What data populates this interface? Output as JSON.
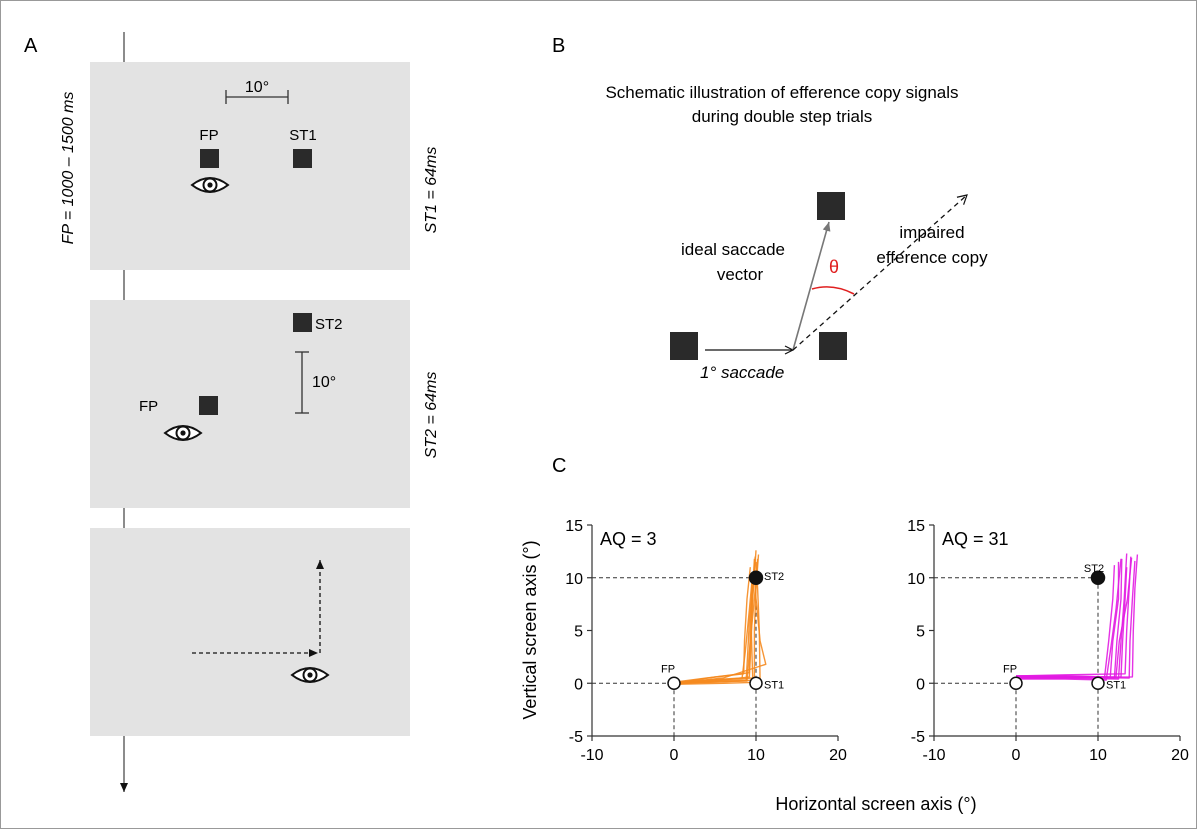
{
  "panels": {
    "a": {
      "label": "A",
      "time_labels": [
        "FP = 1000 – 1500 ms",
        "ST1 = 64ms",
        "ST2 = 64ms"
      ],
      "screen1": {
        "scale": "10°",
        "fp": "FP",
        "st1": "ST1"
      },
      "screen2": {
        "st2": "ST2",
        "fp": "FP",
        "scale": "10°"
      }
    },
    "b": {
      "label": "B",
      "title_line1": "Schematic illustration of efference copy signals",
      "title_line2": "during double step trials",
      "ideal_line1": "ideal saccade",
      "ideal_line2": "vector",
      "impaired_line1": "impaired",
      "impaired_line2": "efference copy",
      "theta": "θ",
      "saccade": "1° saccade"
    },
    "c": {
      "label": "C"
    }
  },
  "chart_data": [
    {
      "type": "line",
      "title": "AQ = 3",
      "xlabel": "Horizontal screen axis (°)",
      "ylabel": "Vertical screen axis (°)",
      "xlim": [
        -10,
        20
      ],
      "ylim": [
        -5,
        15
      ],
      "xticks": [
        -10,
        0,
        10,
        20
      ],
      "yticks": [
        -5,
        0,
        5,
        10,
        15
      ],
      "trace_color": "#f5891f",
      "targets": [
        {
          "name": "FP",
          "x": 0,
          "y": 0,
          "filled": false
        },
        {
          "name": "ST1",
          "x": 10,
          "y": 0,
          "filled": false
        },
        {
          "name": "ST2",
          "x": 10,
          "y": 10,
          "filled": true
        }
      ],
      "traces": [
        [
          [
            0,
            0
          ],
          [
            4,
            0.2
          ],
          [
            8.8,
            0.3
          ],
          [
            9.0,
            3
          ],
          [
            9.2,
            6
          ],
          [
            9.6,
            9
          ],
          [
            9.8,
            11.8
          ]
        ],
        [
          [
            0,
            -0.1
          ],
          [
            5,
            0.2
          ],
          [
            9.2,
            0.6
          ],
          [
            9.4,
            4
          ],
          [
            9.6,
            8
          ],
          [
            10.0,
            12.6
          ]
        ],
        [
          [
            0,
            0.1
          ],
          [
            4,
            0.5
          ],
          [
            8.5,
            0.9
          ],
          [
            8.6,
            4
          ],
          [
            8.9,
            8
          ],
          [
            9.3,
            11
          ]
        ],
        [
          [
            0,
            0
          ],
          [
            5,
            0.1
          ],
          [
            9.8,
            0.3
          ],
          [
            9.8,
            5
          ],
          [
            10.0,
            9
          ],
          [
            10.3,
            12.2
          ]
        ],
        [
          [
            0,
            0
          ],
          [
            5,
            0.6
          ],
          [
            9.2,
            1.0
          ],
          [
            9.3,
            5
          ],
          [
            9.5,
            9
          ],
          [
            9.7,
            10.6
          ]
        ],
        [
          [
            0,
            -0.1
          ],
          [
            6,
            0
          ],
          [
            10.5,
            0.1
          ],
          [
            10.4,
            5
          ],
          [
            10.2,
            9
          ],
          [
            10.0,
            11.5
          ]
        ],
        [
          [
            0,
            0.05
          ],
          [
            4,
            0.3
          ],
          [
            8.3,
            0.5
          ],
          [
            8.7,
            3
          ],
          [
            9.2,
            7
          ],
          [
            9.6,
            10.5
          ]
        ],
        [
          [
            0,
            0
          ],
          [
            6,
            0.5
          ],
          [
            11.2,
            1.8
          ],
          [
            10.5,
            4
          ],
          [
            10.0,
            8
          ],
          [
            9.8,
            11.0
          ]
        ],
        [
          [
            0,
            0
          ],
          [
            5,
            0.3
          ],
          [
            9.6,
            0.5
          ],
          [
            9.5,
            3
          ],
          [
            9.4,
            6
          ],
          [
            9.9,
            12.0
          ]
        ],
        [
          [
            0,
            0
          ],
          [
            4,
            0.1
          ],
          [
            8.9,
            0.2
          ],
          [
            9.3,
            4
          ],
          [
            9.8,
            8
          ],
          [
            10.2,
            11.8
          ]
        ]
      ]
    },
    {
      "type": "line",
      "title": "AQ = 31",
      "xlabel": "",
      "ylabel": "",
      "xlim": [
        -10,
        20
      ],
      "ylim": [
        -5,
        15
      ],
      "xticks": [
        -10,
        0,
        10,
        20
      ],
      "yticks": [
        -5,
        0,
        5,
        10,
        15
      ],
      "trace_color": "#e21ce2",
      "targets": [
        {
          "name": "FP",
          "x": 0,
          "y": 0,
          "filled": false
        },
        {
          "name": "ST1",
          "x": 10,
          "y": 0,
          "filled": false
        },
        {
          "name": "ST2",
          "x": 10,
          "y": 10,
          "filled": true
        }
      ],
      "traces": [
        [
          [
            0,
            0.7
          ],
          [
            6,
            0.7
          ],
          [
            11.5,
            0.6
          ],
          [
            11.8,
            4
          ],
          [
            12.5,
            8
          ],
          [
            12.5,
            11.5
          ]
        ],
        [
          [
            0,
            0.6
          ],
          [
            6,
            0.6
          ],
          [
            12.0,
            0.5
          ],
          [
            12.3,
            4
          ],
          [
            12.8,
            8
          ],
          [
            12.9,
            11.8
          ]
        ],
        [
          [
            0,
            0.5
          ],
          [
            6,
            0.5
          ],
          [
            12.8,
            0.6
          ],
          [
            13.0,
            4
          ],
          [
            13.3,
            8
          ],
          [
            13.5,
            11.0
          ]
        ],
        [
          [
            0,
            0.7
          ],
          [
            6,
            0.8
          ],
          [
            13.3,
            0.9
          ],
          [
            13.5,
            5
          ],
          [
            13.8,
            9
          ],
          [
            14.0,
            12.0
          ]
        ],
        [
          [
            0,
            0.6
          ],
          [
            6,
            0.6
          ],
          [
            13.8,
            0.5
          ],
          [
            13.9,
            4
          ],
          [
            14.2,
            8
          ],
          [
            14.5,
            11.6
          ]
        ],
        [
          [
            0,
            0.4
          ],
          [
            6,
            0.4
          ],
          [
            11.0,
            0.3
          ],
          [
            11.5,
            3
          ],
          [
            12.2,
            7
          ],
          [
            12.8,
            11.8
          ]
        ],
        [
          [
            0,
            0.5
          ],
          [
            6,
            0.5
          ],
          [
            12.5,
            0.4
          ],
          [
            12.8,
            4
          ],
          [
            13.2,
            8
          ],
          [
            13.5,
            12.3
          ]
        ],
        [
          [
            0,
            0.7
          ],
          [
            6,
            0.7
          ],
          [
            10.8,
            0.6
          ],
          [
            11.3,
            4
          ],
          [
            11.8,
            8
          ],
          [
            12.0,
            11.2
          ]
        ],
        [
          [
            0,
            0.5
          ],
          [
            6,
            0.5
          ],
          [
            14.2,
            0.6
          ],
          [
            14.3,
            5
          ],
          [
            14.5,
            9
          ],
          [
            14.8,
            12.2
          ]
        ],
        [
          [
            0,
            0.6
          ],
          [
            6,
            0.6
          ],
          [
            12.2,
            0.6
          ],
          [
            12.6,
            4
          ],
          [
            13.6,
            8
          ],
          [
            14.1,
            11.9
          ]
        ]
      ]
    }
  ]
}
